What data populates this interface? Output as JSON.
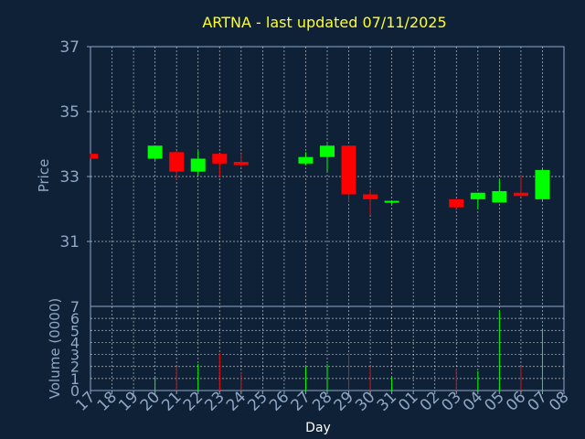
{
  "chart_data": {
    "type": "candlestick",
    "title": "ARTNA - last updated 07/11/2025",
    "xlabel": "Day",
    "ylabel": "Price",
    "volume_label": "Volume (0000)",
    "price_ylim": [
      29,
      37
    ],
    "price_ticks": [
      31,
      33,
      35,
      37
    ],
    "volume_ylim": [
      0,
      7
    ],
    "volume_ticks": [
      0,
      1,
      2,
      3,
      4,
      5,
      6,
      7
    ],
    "x_tick_labels": [
      "17",
      "18",
      "19",
      "20",
      "21",
      "22",
      "23",
      "24",
      "25",
      "26",
      "27",
      "28",
      "29",
      "30",
      "31",
      "01",
      "02",
      "03",
      "04",
      "05",
      "06",
      "07",
      "08"
    ],
    "grid": true,
    "colors": {
      "up": "#00ff00",
      "down": "#ff0000",
      "grid": "#ffffff",
      "frame": "#8fa7c4",
      "background": "#0f2137",
      "title": "#ffff2e"
    },
    "candles": [
      {
        "day": "17",
        "open": 33.7,
        "high": 33.7,
        "low": 33.55,
        "close": 33.55,
        "volume": 0.0
      },
      {
        "day": "20",
        "open": 33.55,
        "high": 33.95,
        "low": 33.5,
        "close": 33.95,
        "volume": 1.2
      },
      {
        "day": "21",
        "open": 33.75,
        "high": 33.8,
        "low": 32.9,
        "close": 33.15,
        "volume": 2.0
      },
      {
        "day": "22",
        "open": 33.15,
        "high": 33.8,
        "low": 33.05,
        "close": 33.55,
        "volume": 2.2
      },
      {
        "day": "23",
        "open": 33.7,
        "high": 33.7,
        "low": 33.0,
        "close": 33.4,
        "volume": 3.1
      },
      {
        "day": "24",
        "open": 33.45,
        "high": 33.7,
        "low": 33.3,
        "close": 33.35,
        "volume": 1.5
      },
      {
        "day": "27",
        "open": 33.4,
        "high": 33.75,
        "low": 33.35,
        "close": 33.6,
        "volume": 2.0
      },
      {
        "day": "28",
        "open": 33.6,
        "high": 34.0,
        "low": 33.15,
        "close": 33.95,
        "volume": 2.2
      },
      {
        "day": "29",
        "open": 33.95,
        "high": 33.95,
        "low": 32.2,
        "close": 32.45,
        "volume": 3.1
      },
      {
        "day": "30",
        "open": 32.45,
        "high": 32.6,
        "low": 31.8,
        "close": 32.3,
        "volume": 2.0
      },
      {
        "day": "31",
        "open": 32.2,
        "high": 32.25,
        "low": 32.15,
        "close": 32.25,
        "volume": 1.1
      },
      {
        "day": "03",
        "open": 32.3,
        "high": 32.3,
        "low": 31.95,
        "close": 32.05,
        "volume": 1.8
      },
      {
        "day": "04",
        "open": 32.3,
        "high": 32.5,
        "low": 32.0,
        "close": 32.5,
        "volume": 1.6
      },
      {
        "day": "05",
        "open": 32.2,
        "high": 32.9,
        "low": 32.2,
        "close": 32.55,
        "volume": 6.7
      },
      {
        "day": "06",
        "open": 32.5,
        "high": 33.05,
        "low": 32.4,
        "close": 32.4,
        "volume": 2.0
      },
      {
        "day": "07",
        "open": 32.3,
        "high": 33.25,
        "low": 32.25,
        "close": 33.2,
        "volume": 5.1
      }
    ]
  }
}
